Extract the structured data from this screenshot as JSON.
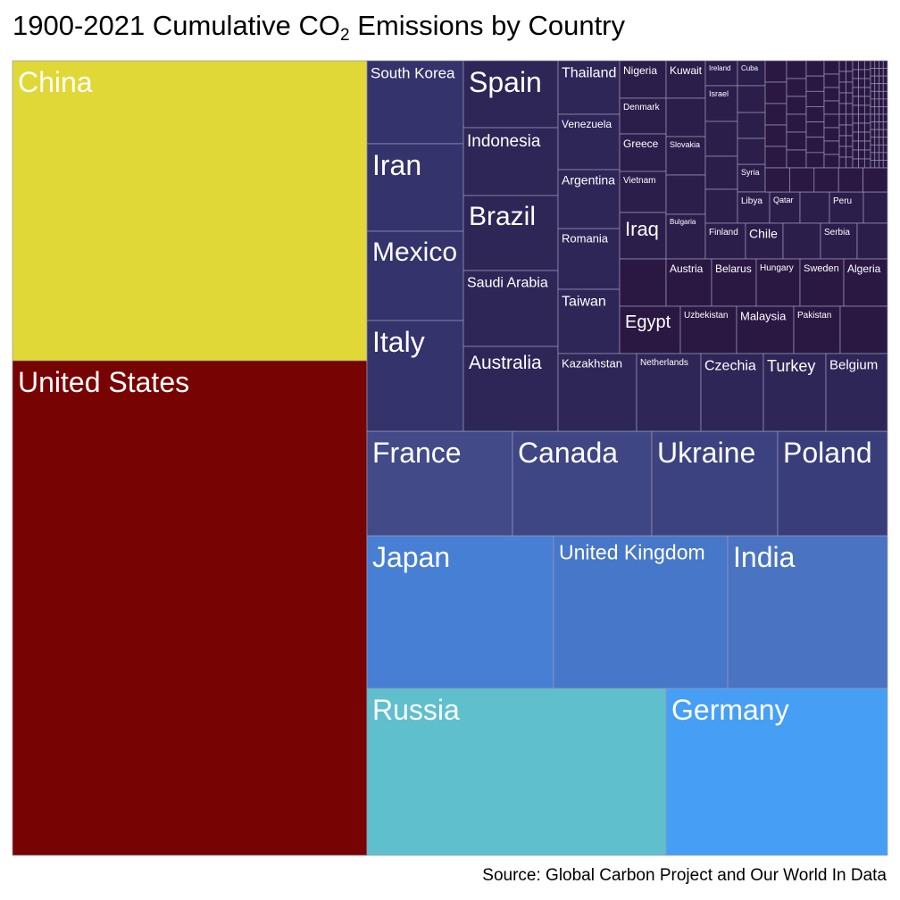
{
  "title": {
    "text": "1900-2021 Cumulative CO",
    "subscript": "2",
    "suffix": " Emissions by Country"
  },
  "source": "Source: Global Carbon Project and Our World In Data",
  "chart_data": {
    "type": "treemap",
    "title": "1900-2021 Cumulative CO2 Emissions by Country",
    "source": "Source: Global Carbon Project and Our World In Data",
    "colors": {
      "China": "#e0d836",
      "United States": "#780303",
      "Russia": "#5fbfcd",
      "Germany": "#479ff5",
      "Japan": "#477fd5",
      "United Kingdom": "#4777c8",
      "India": "#4a74c2",
      "France": "#424a88",
      "Canada": "#3f4684",
      "Ukraine": "#3c4280",
      "Poland": "#393e7b",
      "mid": "#34336c",
      "dark": "#2e2657",
      "darker": "#2c1e4b",
      "darkest": "#2a1843"
    },
    "countries": [
      "China",
      "United States",
      "Russia",
      "Germany",
      "Japan",
      "United Kingdom",
      "India",
      "France",
      "Canada",
      "Ukraine",
      "Poland",
      "South Korea",
      "Iran",
      "Mexico",
      "Italy",
      "Spain",
      "Indonesia",
      "Brazil",
      "Saudi Arabia",
      "Australia",
      "Thailand",
      "Venezuela",
      "Argentina",
      "Romania",
      "Taiwan",
      "Nigeria",
      "Denmark",
      "Greece",
      "Vietnam",
      "Iraq",
      "Kuwait",
      "Slovakia",
      "Bulgaria",
      "Ireland",
      "Israel",
      "Cuba",
      "Syria",
      "Libya",
      "Qatar",
      "Peru",
      "Finland",
      "Chile",
      "Serbia",
      "Austria",
      "Belarus",
      "Hungary",
      "Sweden",
      "Algeria",
      "Egypt",
      "Uzbekistan",
      "Malaysia",
      "Pakistan",
      "Kazakhstan",
      "Netherlands",
      "Czechia",
      "Turkey",
      "Belgium"
    ]
  }
}
